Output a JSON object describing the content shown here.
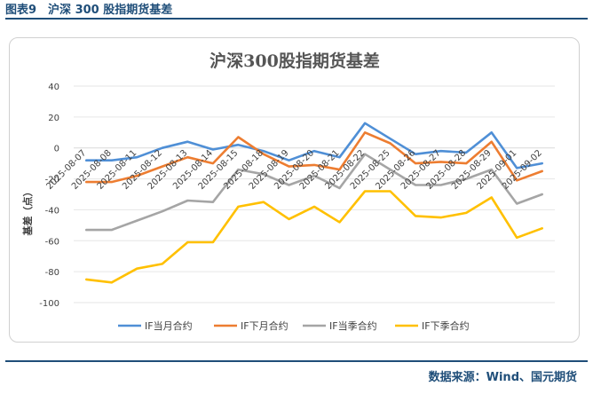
{
  "figure_label": "图表9　沪深 300 股指期货基差",
  "source_note": "数据来源：Wind、国元期货",
  "colors": {
    "IF_current": "#4f8fd6",
    "IF_next": "#ed7d31",
    "IF_cur_q": "#a5a5a5",
    "IF_next_q": "#ffc000",
    "grid": "#e6e6e6",
    "axis": "#d9d9d9"
  },
  "chart_data": {
    "type": "line",
    "title": "沪深300股指期货基差",
    "ylabel": "基差（点）",
    "xlabel": "",
    "ylim": [
      -100,
      40
    ],
    "yticks": [
      40,
      20,
      0,
      -20,
      -40,
      -60,
      -80,
      -100
    ],
    "grid": "horizontal",
    "legend_position": "bottom",
    "categories": [
      "2025-08-07",
      "2025-08-08",
      "2025-08-11",
      "2025-08-12",
      "2025-08-13",
      "2025-08-14",
      "2025-08-15",
      "2025-08-18",
      "2025-08-19",
      "2025-08-20",
      "2025-08-21",
      "2025-08-22",
      "2025-08-25",
      "2025-08-26",
      "2025-08-27",
      "2025-08-28",
      "2025-08-29",
      "2025-09-01",
      "2025-09-02"
    ],
    "series": [
      {
        "name": "IF当月合约",
        "color_key": "IF_current",
        "values": [
          -8,
          -8,
          -6,
          0,
          4,
          -1,
          2,
          -2,
          -8,
          -2,
          -6,
          16,
          6,
          -4,
          -2,
          -3,
          10,
          -13,
          -10
        ]
      },
      {
        "name": "IF下月合约",
        "color_key": "IF_next",
        "values": [
          -22,
          -22,
          -18,
          -12,
          -6,
          -10,
          7,
          -4,
          -12,
          -11,
          -14,
          10,
          3,
          -10,
          -9,
          -10,
          4,
          -21,
          -15
        ]
      },
      {
        "name": "IF当季合约",
        "color_key": "IF_cur_q",
        "values": [
          -53,
          -53,
          -47,
          -41,
          -34,
          -35,
          -14,
          -17,
          -24,
          -18,
          -26,
          -4,
          -14,
          -24,
          -24,
          -20,
          -14,
          -36,
          -30
        ]
      },
      {
        "name": "IF下季合约",
        "color_key": "IF_next_q",
        "values": [
          -85,
          -87,
          -78,
          -75,
          -61,
          -61,
          -38,
          -35,
          -46,
          -38,
          -48,
          -28,
          -28,
          -44,
          -45,
          -42,
          -32,
          -58,
          -52
        ]
      }
    ]
  }
}
